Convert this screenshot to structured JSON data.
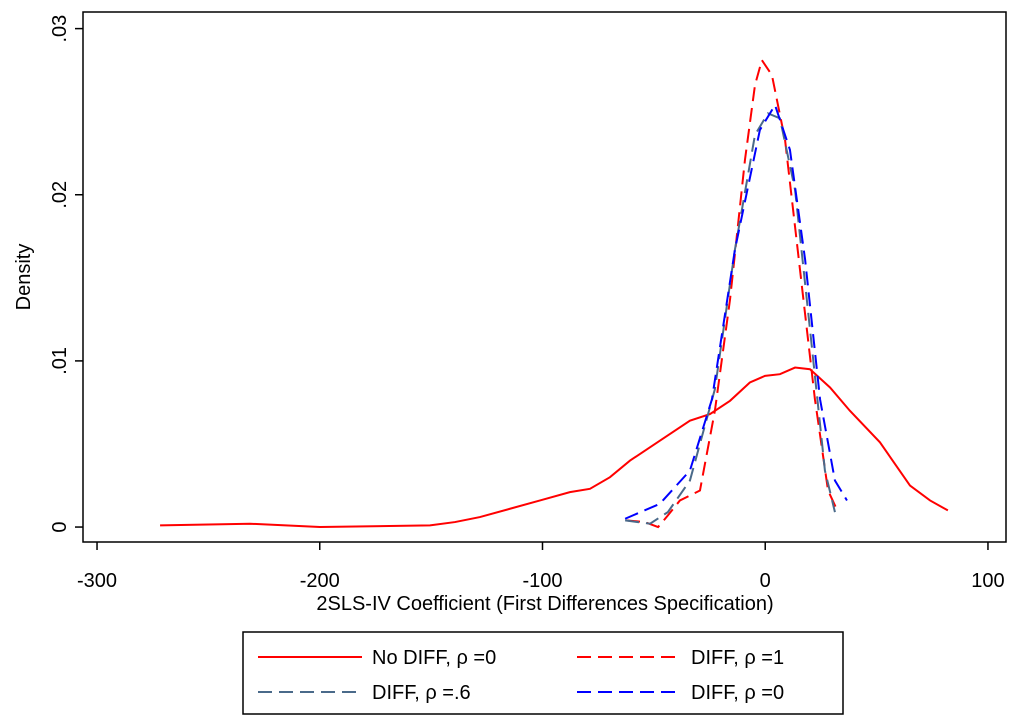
{
  "chart_data": {
    "type": "line",
    "x_label": "2SLS-IV Coefficient (First Differences Specification)",
    "y_label": "Density",
    "xlim": [
      -306.3,
      108.1
    ],
    "ylim": [
      -0.0009,
      0.031
    ],
    "xticks": [
      -300,
      -200,
      -100,
      0,
      100
    ],
    "yticks": [
      0,
      {
        "value": 0.01,
        "label": ".01"
      },
      {
        "value": 0.02,
        "label": ".02"
      },
      {
        "value": 0.03,
        "label": ".03"
      }
    ],
    "grid": false,
    "legend": "bottom",
    "series": [
      {
        "name": "No DIFF, ρ =0",
        "color": "#ff0000",
        "dash": "solid",
        "x": [
          -271.7,
          -231.3,
          -199.9,
          -150.5,
          -139.3,
          -128.1,
          -114.6,
          -101.1,
          -87.7,
          -78.7,
          -69.7,
          -60.7,
          -47.3,
          -33.8,
          -24.8,
          -15.8,
          -6.9,
          -0.1,
          6.6,
          13.4,
          20.1,
          29.1,
          38.0,
          51.5,
          65.0,
          74.0,
          82.0
        ],
        "values": [
          0.0001,
          0.0002,
          0.0,
          0.0001,
          0.0003,
          0.0006,
          0.0011,
          0.0016,
          0.0021,
          0.0023,
          0.003,
          0.004,
          0.0052,
          0.0064,
          0.0068,
          0.0076,
          0.0087,
          0.0091,
          0.0092,
          0.0096,
          0.0095,
          0.0084,
          0.007,
          0.0051,
          0.0025,
          0.0016,
          0.001
        ]
      },
      {
        "name": "DIFF, ρ =1",
        "color": "#ff0000",
        "dash": "dashed",
        "x": [
          -62.5,
          -54.0,
          -48.1,
          -43.7,
          -38.3,
          -29.3,
          -22.6,
          -15.8,
          -9.1,
          -4.6,
          -1.5,
          3.0,
          8.9,
          15.6,
          22.3,
          28.2,
          32.7
        ],
        "values": [
          0.0004,
          0.0003,
          0.0,
          0.0007,
          0.0016,
          0.0022,
          0.007,
          0.0137,
          0.0221,
          0.0266,
          0.0281,
          0.0272,
          0.0233,
          0.0155,
          0.0077,
          0.0022,
          0.0009
        ]
      },
      {
        "name": "DIFF, ρ =.6",
        "color": "#4a6a8a",
        "dash": "dashed",
        "x": [
          -62.9,
          -51.7,
          -43.7,
          -33.8,
          -22.6,
          -13.6,
          -4.6,
          1.2,
          6.6,
          13.4,
          20.1,
          26.8,
          31.3
        ],
        "values": [
          0.0004,
          0.0002,
          0.0009,
          0.0028,
          0.0083,
          0.0167,
          0.0236,
          0.0249,
          0.0246,
          0.0203,
          0.0119,
          0.0034,
          0.0009
        ]
      },
      {
        "name": "DIFF, ρ =0",
        "color": "#0000ff",
        "dash": "dashed",
        "x": [
          -62.9,
          -47.3,
          -33.8,
          -23.9,
          -13.6,
          -2.4,
          4.4,
          11.1,
          17.9,
          24.6,
          31.3,
          36.7
        ],
        "values": [
          0.0005,
          0.0014,
          0.0034,
          0.0077,
          0.0167,
          0.0239,
          0.0254,
          0.0227,
          0.0161,
          0.0077,
          0.0028,
          0.0016
        ]
      }
    ]
  }
}
